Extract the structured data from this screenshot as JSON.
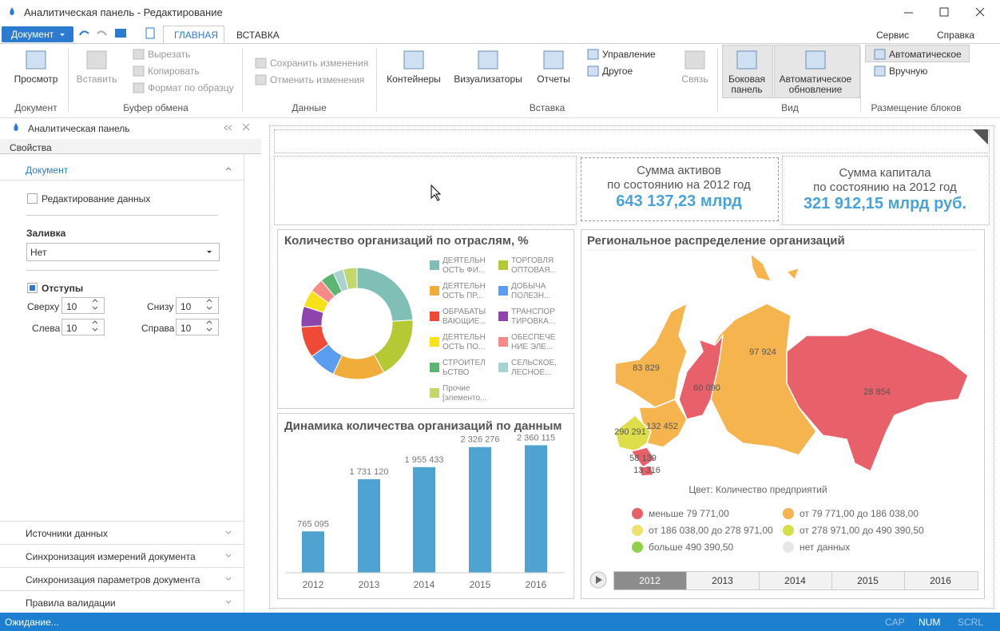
{
  "window": {
    "title": "Аналитическая панель - Редактирование"
  },
  "menu": {
    "document_button": "Документ",
    "tabs": [
      "ГЛАВНАЯ",
      "ВСТАВКА"
    ],
    "right": [
      "Сервис",
      "Справка"
    ]
  },
  "ribbon": {
    "groups": [
      {
        "label": "Документ",
        "items": [
          "Просмотр"
        ]
      },
      {
        "label": "Буфер обмена",
        "items": [
          "Вставить",
          "Вырезать",
          "Копировать",
          "Формат по образцу"
        ]
      },
      {
        "label": "Данные",
        "items": [
          "Сохранить изменения",
          "Отменить изменения"
        ]
      },
      {
        "label": "Вставка",
        "items": [
          "Контейнеры",
          "Визуализаторы",
          "Отчеты",
          "Управление",
          "Другое",
          "Связь"
        ]
      },
      {
        "label": "Вид",
        "items": [
          "Боковая панель",
          "Автоматическое обновление"
        ]
      },
      {
        "label": "Размещение блоков",
        "items": [
          "Автоматическое",
          "Вручную"
        ]
      }
    ]
  },
  "side_panel": {
    "title": "Аналитическая панель",
    "tab": "Свойства",
    "section": "Документ",
    "edit_checkbox": "Редактирование данных",
    "fill_label": "Заливка",
    "fill_value": "Нет",
    "margins_label": "Отступы",
    "fields": [
      {
        "label": "Сверху",
        "value": 10
      },
      {
        "label": "Снизу",
        "value": 10
      },
      {
        "label": "Слева",
        "value": 10
      },
      {
        "label": "Справа",
        "value": 10
      }
    ],
    "footer_sections": [
      "Источники данных",
      "Синхронизация измерений документа",
      "Синхронизация параметров документа",
      "Правила валидации"
    ]
  },
  "kpis": [
    {
      "title": "Сумма активов",
      "subtitle": "по состоянию на 2012 год",
      "value": "643 137,23 млрд"
    },
    {
      "title": "Сумма капитала",
      "subtitle": "по состоянию на 2012 год",
      "value": "321 912,15 млрд руб."
    }
  ],
  "map": {
    "title": "Региональное распределение организаций",
    "regions": [
      {
        "label": "28 854",
        "color": "#e8606a"
      },
      {
        "label": "97 924",
        "color": "#f5b44e"
      },
      {
        "label": "60 090",
        "color": "#e8606a"
      },
      {
        "label": "83 829",
        "color": "#f5b44e"
      },
      {
        "label": "132 452",
        "color": "#f5b44e"
      },
      {
        "label": "290 291",
        "color": "#dede4a"
      },
      {
        "label": "58 139",
        "color": "#e8606a"
      },
      {
        "label": "13 316",
        "color": "#e8606a"
      }
    ],
    "legend_title": "Цвет: Количество предприятий",
    "legend": [
      {
        "label": "меньше 79 771,00",
        "color": "#e8606a"
      },
      {
        "label": "от 79 771,00 до 186 038,00",
        "color": "#f5b44e"
      },
      {
        "label": "от 186 038,00 до 278 971,00",
        "color": "#ede36a"
      },
      {
        "label": "от 278 971,00 до 490 390,50",
        "color": "#d4de4a"
      },
      {
        "label": "больше 490 390,50",
        "color": "#8fd14a"
      },
      {
        "label": "нет данных",
        "color": "#e6e6e6"
      }
    ],
    "timeline": [
      "2012",
      "2013",
      "2014",
      "2015",
      "2016"
    ]
  },
  "status": {
    "text": "Ожидание...",
    "indicators": [
      "CAP",
      "NUM",
      "SCRL"
    ]
  },
  "chart_data": [
    {
      "type": "pie",
      "title": "Количество организаций по отраслям, %",
      "categories": [
        "ДЕЯТЕЛЬН ОСТЬ ФИ...",
        "ТОРГОВЛЯ ОПТОВАЯ...",
        "ДЕЯТЕЛЬН ОСТЬ ПР...",
        "ДОБЫЧА ПОЛЕЗН...",
        "ОБРАБАТЫ ВАЮЩИЕ...",
        "ТРАНСПОР ТИРОВКА...",
        "ДЕЯТЕЛЬН ОСТЬ ПО...",
        "ОБЕСПЕЧЕ НИЕ ЭЛЕ...",
        "СТРОИТЕЛ ЬСТВО",
        "СЕЛЬСКОЕ, ЛЕСНОЕ...",
        "Прочие [элементо..."
      ],
      "values": [
        24,
        18,
        15,
        8,
        9,
        6,
        5,
        4,
        4,
        3,
        4
      ],
      "colors": [
        "#7fbfb5",
        "#b5c935",
        "#f0ad3a",
        "#5b9ef0",
        "#ef4a38",
        "#8e44ad",
        "#f7e21a",
        "#f78a86",
        "#5cb570",
        "#a9d3d0",
        "#c3d86a"
      ]
    },
    {
      "type": "bar",
      "title": "Динамика количества организаций по данным",
      "categories": [
        "2012",
        "2013",
        "2014",
        "2015",
        "2016"
      ],
      "values": [
        765095,
        1731120,
        1955433,
        2326276,
        2360115
      ],
      "value_labels": [
        "765 095",
        "1 731 120",
        "1 955 433",
        "2 326 276",
        "2 360 115"
      ],
      "color": "#4fa3d1",
      "ylim": [
        0,
        2500000
      ]
    }
  ]
}
